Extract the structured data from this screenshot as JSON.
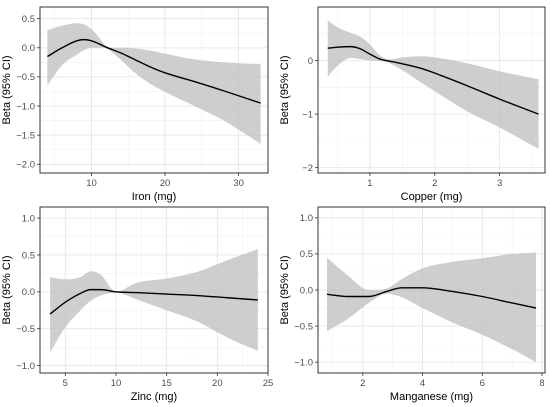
{
  "chart_data": [
    {
      "type": "line",
      "xlabel": "Iron (mg)",
      "ylabel": "Beta (95% CI)",
      "xlim": [
        3,
        34
      ],
      "ylim": [
        -2.15,
        0.7
      ],
      "xticks": [
        10,
        20,
        30
      ],
      "yticks": [
        -2.0,
        -1.5,
        -1.0,
        -0.5,
        0.0,
        0.5
      ],
      "x": [
        4,
        6,
        8,
        9,
        10,
        11,
        12,
        14,
        16,
        18,
        20,
        24,
        28,
        33
      ],
      "y": [
        -0.15,
        0.0,
        0.12,
        0.14,
        0.12,
        0.07,
        0.01,
        -0.09,
        -0.21,
        -0.33,
        -0.43,
        -0.58,
        -0.74,
        -0.95
      ],
      "lower": [
        -0.65,
        -0.3,
        -0.12,
        -0.04,
        0.0,
        0.0,
        -0.01,
        -0.21,
        -0.44,
        -0.62,
        -0.76,
        -1.0,
        -1.25,
        -1.65
      ],
      "upper": [
        0.3,
        0.38,
        0.42,
        0.4,
        0.32,
        0.18,
        0.03,
        0.0,
        -0.01,
        -0.05,
        -0.1,
        -0.2,
        -0.25,
        -0.28
      ]
    },
    {
      "type": "line",
      "xlabel": "Copper (mg)",
      "ylabel": "Beta (95% CI)",
      "xlim": [
        0.2,
        3.7
      ],
      "ylim": [
        -2.1,
        1.0
      ],
      "xticks": [
        1,
        2,
        3
      ],
      "yticks": [
        -2,
        -1,
        0
      ],
      "x": [
        0.35,
        0.5,
        0.7,
        0.85,
        1.0,
        1.15,
        1.3,
        1.5,
        1.8,
        2.1,
        2.5,
        3.0,
        3.6
      ],
      "y": [
        0.23,
        0.25,
        0.26,
        0.22,
        0.12,
        0.03,
        -0.01,
        -0.06,
        -0.15,
        -0.28,
        -0.47,
        -0.72,
        -1.0
      ],
      "lower": [
        -0.3,
        -0.1,
        0.05,
        0.03,
        0.0,
        -0.01,
        -0.05,
        -0.18,
        -0.42,
        -0.65,
        -0.95,
        -1.25,
        -1.65
      ],
      "upper": [
        0.75,
        0.62,
        0.52,
        0.45,
        0.3,
        0.1,
        0.02,
        0.06,
        0.08,
        0.04,
        -0.05,
        -0.2,
        -0.35
      ]
    },
    {
      "type": "line",
      "xlabel": "Zinc (mg)",
      "ylabel": "Beta (95% CI)",
      "xlim": [
        2.5,
        25
      ],
      "ylim": [
        -1.1,
        1.15
      ],
      "xticks": [
        5,
        10,
        15,
        20,
        25
      ],
      "yticks": [
        -1.0,
        -0.5,
        0.0,
        0.5,
        1.0
      ],
      "x": [
        3.5,
        5,
        6.5,
        7.5,
        8.5,
        10,
        12,
        15,
        18,
        21,
        24
      ],
      "y": [
        -0.3,
        -0.14,
        -0.02,
        0.03,
        0.03,
        0.0,
        -0.01,
        -0.03,
        -0.05,
        -0.08,
        -0.11
      ],
      "lower": [
        -0.82,
        -0.48,
        -0.25,
        -0.12,
        -0.05,
        -0.01,
        -0.1,
        -0.25,
        -0.4,
        -0.62,
        -0.8
      ],
      "upper": [
        0.2,
        0.17,
        0.2,
        0.28,
        0.23,
        0.0,
        0.12,
        0.18,
        0.27,
        0.43,
        0.58
      ]
    },
    {
      "type": "line",
      "xlabel": "Manganese (mg)",
      "ylabel": "Beta (95% CI)",
      "xlim": [
        0.5,
        8.1
      ],
      "ylim": [
        -1.15,
        1.15
      ],
      "xticks": [
        2,
        4,
        6,
        8
      ],
      "yticks": [
        -1.0,
        -0.5,
        0.0,
        0.5,
        1.0
      ],
      "x": [
        0.8,
        1.5,
        2.2,
        2.8,
        3.3,
        4.0,
        5.0,
        6.0,
        7.0,
        7.8
      ],
      "y": [
        -0.06,
        -0.09,
        -0.09,
        -0.02,
        0.03,
        0.03,
        -0.02,
        -0.09,
        -0.18,
        -0.25
      ],
      "lower": [
        -0.57,
        -0.4,
        -0.18,
        -0.05,
        -0.1,
        -0.25,
        -0.45,
        -0.62,
        -0.82,
        -1.0
      ],
      "upper": [
        0.45,
        0.2,
        0.0,
        0.02,
        0.15,
        0.3,
        0.39,
        0.44,
        0.5,
        0.52
      ]
    }
  ]
}
